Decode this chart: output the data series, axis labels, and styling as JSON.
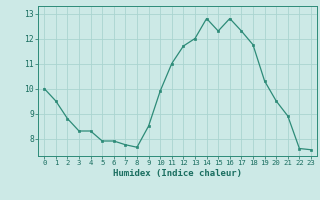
{
  "x": [
    0,
    1,
    2,
    3,
    4,
    5,
    6,
    7,
    8,
    9,
    10,
    11,
    12,
    13,
    14,
    15,
    16,
    17,
    18,
    19,
    20,
    21,
    22,
    23
  ],
  "y": [
    10.0,
    9.5,
    8.8,
    8.3,
    8.3,
    7.9,
    7.9,
    7.75,
    7.65,
    8.5,
    9.9,
    11.0,
    11.7,
    12.0,
    12.8,
    12.3,
    12.8,
    12.3,
    11.75,
    10.3,
    9.5,
    8.9,
    7.6,
    7.55
  ],
  "xlabel": "Humidex (Indice chaleur)",
  "ylim": [
    7.3,
    13.3
  ],
  "xlim": [
    -0.5,
    23.5
  ],
  "yticks": [
    8,
    9,
    10,
    11,
    12,
    13
  ],
  "xticks": [
    0,
    1,
    2,
    3,
    4,
    5,
    6,
    7,
    8,
    9,
    10,
    11,
    12,
    13,
    14,
    15,
    16,
    17,
    18,
    19,
    20,
    21,
    22,
    23
  ],
  "line_color": "#2d8b78",
  "marker_color": "#2d8b78",
  "bg_color": "#cce9e6",
  "grid_color": "#aad4d0",
  "axis_color": "#2d8b78",
  "tick_color": "#1a6e60",
  "label_color": "#1a6e60"
}
